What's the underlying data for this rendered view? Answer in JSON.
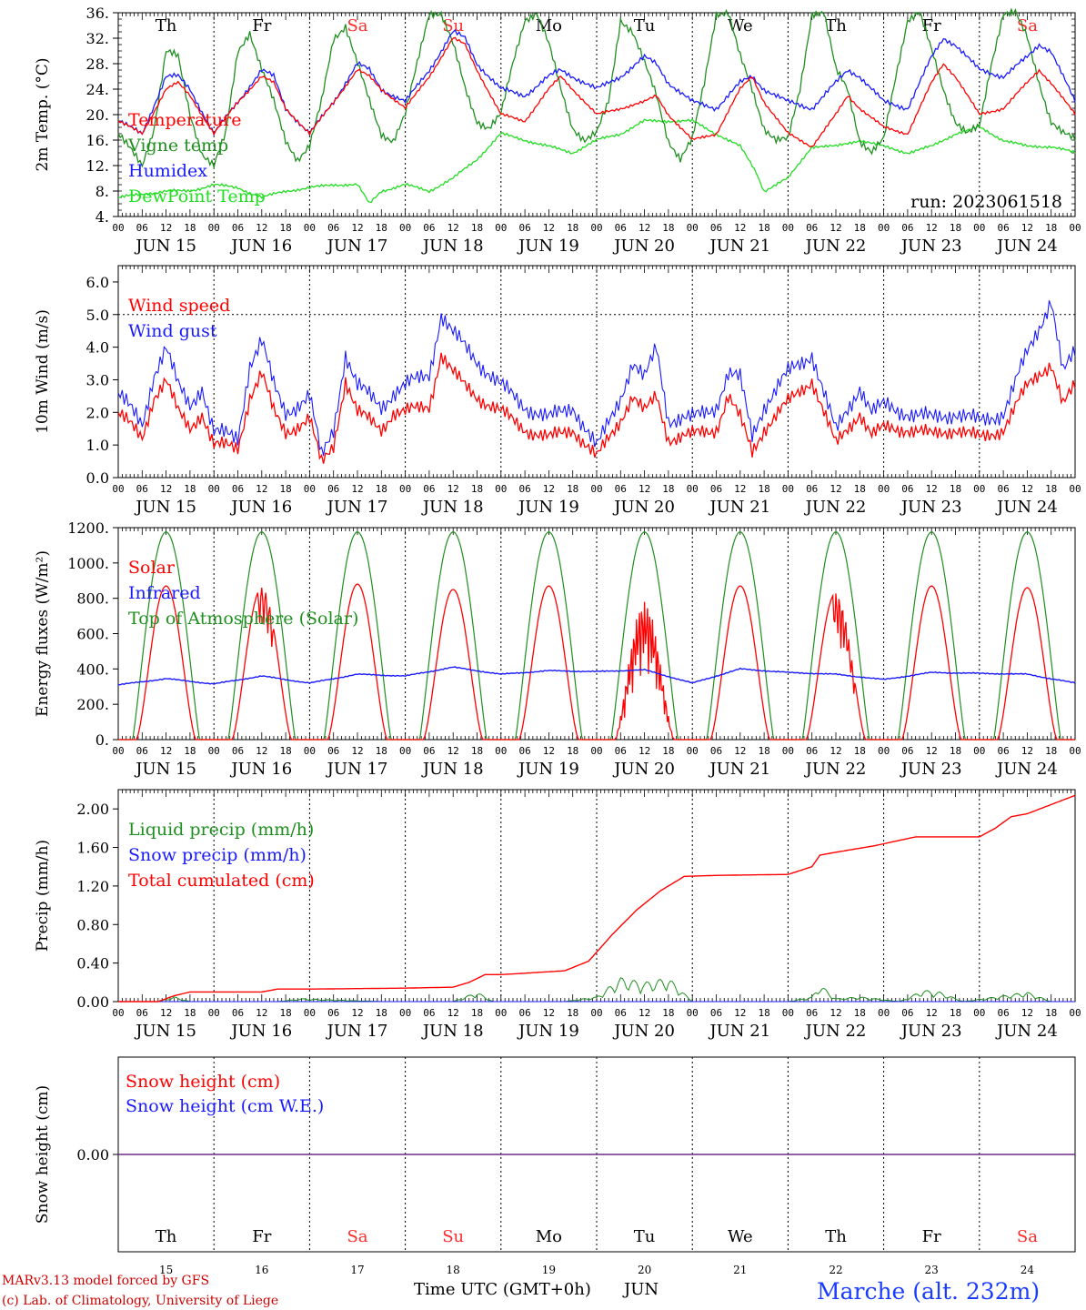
{
  "colors": {
    "red": "#ff0000",
    "green": "#1f8f1f",
    "blue": "#1a1aff",
    "lightgreen": "#22dd22",
    "purple": "#6a2a8a",
    "weekend": "#ff2a2a",
    "weekday": "#000000"
  },
  "day_names": [
    "Th",
    "Fr",
    "Sa",
    "Su",
    "Mo",
    "Tu",
    "We",
    "Th",
    "Fr",
    "Sa"
  ],
  "weekend_flags": [
    false,
    false,
    true,
    true,
    false,
    false,
    false,
    false,
    false,
    true
  ],
  "date_labels": [
    "JUN 15",
    "JUN 16",
    "JUN 17",
    "JUN 18",
    "JUN 19",
    "JUN 20",
    "JUN 21",
    "JUN 22",
    "JUN 23",
    "JUN 24"
  ],
  "day_numbers": [
    "15",
    "16",
    "17",
    "18",
    "19",
    "20",
    "21",
    "22",
    "23",
    "24"
  ],
  "hour_ticks": [
    "00",
    "06",
    "12",
    "18"
  ],
  "hour_end": "00",
  "footer": {
    "model_line1": "MARv3.13 model forced by GFS",
    "model_line2": "(c) Lab. of Climatology, University of Liege",
    "axis_title": "Time UTC (GMT+0h)",
    "month": "JUN",
    "station": "Marche (alt. 232m)"
  },
  "chart_data": [
    {
      "type": "line",
      "id": "temperature",
      "ylabel": "2m Temp. (°C)",
      "ylim": [
        4,
        36
      ],
      "yticks": [
        "4.",
        "8.",
        "12.",
        "16.",
        "20.",
        "24.",
        "28.",
        "32.",
        "36."
      ],
      "yticks_values": [
        4,
        8,
        12,
        16,
        20,
        24,
        28,
        32,
        36
      ],
      "annotation": "run: 2023061518",
      "x_unit": "hours since JUN 15 00 UTC",
      "series": [
        {
          "name": "Temperature",
          "color": "red",
          "x": [
            0,
            6,
            12,
            15,
            18,
            24,
            30,
            36,
            39,
            42,
            48,
            54,
            60,
            63,
            66,
            72,
            78,
            84,
            87,
            90,
            96,
            102,
            108,
            111,
            114,
            120,
            126,
            132,
            135,
            138,
            144,
            150,
            156,
            159,
            162,
            168,
            174,
            180,
            183,
            186,
            192,
            198,
            204,
            207,
            210,
            216,
            222,
            228,
            231,
            234,
            240
          ],
          "y": [
            19,
            17,
            24,
            25,
            23,
            17,
            22,
            26,
            25,
            21,
            17,
            22,
            27,
            26,
            24,
            21,
            26,
            32,
            31,
            27,
            20,
            19,
            24,
            26,
            24,
            20,
            21,
            22,
            23,
            20,
            16,
            17,
            24,
            26,
            22,
            17,
            15,
            20,
            23,
            21,
            18,
            17,
            25,
            28,
            26,
            20,
            21,
            25,
            27,
            25,
            20
          ]
        },
        {
          "name": "Vigne temp",
          "color": "green",
          "x": [
            0,
            6,
            9,
            12,
            15,
            18,
            21,
            24,
            27,
            30,
            33,
            36,
            39,
            42,
            45,
            48,
            51,
            54,
            57,
            60,
            63,
            66,
            69,
            72,
            75,
            78,
            81,
            84,
            87,
            90,
            93,
            96,
            99,
            102,
            105,
            108,
            111,
            114,
            117,
            120,
            123,
            126,
            129,
            132,
            135,
            138,
            141,
            144,
            147,
            150,
            153,
            156,
            159,
            162,
            165,
            168,
            171,
            174,
            177,
            180,
            183,
            186,
            189,
            192,
            195,
            198,
            201,
            204,
            207,
            210,
            213,
            216,
            219,
            222,
            225,
            228,
            231,
            234,
            237,
            240
          ],
          "y": [
            17,
            12,
            18,
            30,
            29,
            20,
            14,
            12,
            17,
            30,
            33,
            27,
            22,
            16,
            13,
            15,
            22,
            32,
            34,
            28,
            22,
            17,
            16,
            20,
            28,
            36,
            36,
            31,
            24,
            19,
            18,
            20,
            28,
            35,
            36,
            31,
            24,
            18,
            16,
            17,
            22,
            35,
            33,
            28,
            23,
            16,
            13,
            16,
            25,
            36,
            36,
            29,
            24,
            18,
            16,
            16,
            24,
            36,
            36,
            27,
            24,
            16,
            14,
            16,
            26,
            35,
            36,
            30,
            24,
            19,
            17,
            18,
            28,
            36,
            36,
            32,
            25,
            19,
            17,
            16
          ]
        },
        {
          "name": "Humidex",
          "color": "blue",
          "x": [
            0,
            6,
            12,
            15,
            18,
            24,
            30,
            36,
            39,
            42,
            48,
            54,
            60,
            63,
            66,
            72,
            78,
            84,
            87,
            90,
            96,
            102,
            108,
            111,
            114,
            120,
            126,
            132,
            135,
            138,
            144,
            150,
            156,
            159,
            162,
            168,
            174,
            180,
            183,
            186,
            192,
            198,
            204,
            207,
            210,
            216,
            222,
            228,
            231,
            234,
            240
          ],
          "y": [
            19,
            17,
            26,
            26,
            24,
            17,
            22,
            27,
            26,
            21,
            17,
            22,
            28,
            27,
            24,
            22,
            27,
            33,
            32,
            28,
            24,
            23,
            26,
            27,
            26,
            24,
            26,
            29,
            28,
            25,
            22,
            21,
            25,
            26,
            24,
            22,
            21,
            25,
            27,
            26,
            22,
            21,
            29,
            32,
            31,
            27,
            26,
            29,
            31,
            30,
            22
          ]
        },
        {
          "name": "DewPoint Temp",
          "color": "lightgreen",
          "x": [
            0,
            6,
            12,
            18,
            24,
            30,
            36,
            42,
            48,
            54,
            60,
            63,
            66,
            72,
            78,
            84,
            90,
            96,
            102,
            108,
            114,
            120,
            126,
            132,
            138,
            144,
            150,
            156,
            160,
            162,
            168,
            174,
            180,
            186,
            192,
            198,
            204,
            210,
            216,
            222,
            228,
            234,
            240
          ],
          "y": [
            7,
            7.5,
            8,
            8,
            9,
            8.5,
            7,
            8,
            8.5,
            9,
            9,
            6,
            8,
            9,
            8,
            10,
            13,
            17,
            16,
            15,
            14,
            16,
            17,
            19,
            19,
            19,
            17,
            15,
            11,
            8,
            10,
            15,
            15,
            16,
            15,
            14,
            15,
            17,
            18,
            16,
            15,
            15,
            14
          ]
        }
      ]
    },
    {
      "type": "line",
      "id": "wind",
      "ylabel": "10m Wind (m/s)",
      "ylim": [
        0,
        6.5
      ],
      "yticks": [
        "0.0",
        "1.0",
        "2.0",
        "3.0",
        "4.0",
        "5.0",
        "6.0"
      ],
      "yticks_values": [
        0,
        1,
        2,
        3,
        4,
        5,
        6
      ],
      "reference_line": 5.0,
      "x_unit": "hours since JUN 15 00 UTC",
      "series": [
        {
          "name": "Wind speed",
          "color": "red",
          "x": [
            0,
            6,
            9,
            12,
            15,
            18,
            21,
            24,
            30,
            33,
            36,
            39,
            42,
            48,
            51,
            54,
            57,
            60,
            66,
            69,
            72,
            78,
            81,
            84,
            87,
            90,
            96,
            102,
            108,
            114,
            120,
            126,
            129,
            132,
            135,
            138,
            144,
            150,
            153,
            156,
            159,
            162,
            168,
            174,
            180,
            186,
            189,
            192,
            198,
            204,
            210,
            216,
            222,
            228,
            231,
            234,
            237,
            240
          ],
          "y": [
            2.0,
            1.2,
            2.5,
            3.0,
            2.0,
            1.5,
            2.0,
            1.0,
            0.9,
            2.5,
            3.2,
            2.0,
            1.4,
            1.8,
            0.4,
            1.0,
            3.0,
            2.0,
            1.5,
            2.0,
            2.0,
            2.2,
            3.8,
            3.2,
            2.8,
            2.5,
            2.0,
            1.5,
            1.2,
            1.5,
            0.6,
            1.8,
            2.5,
            2.0,
            2.5,
            1.2,
            1.3,
            1.5,
            2.5,
            1.8,
            0.8,
            1.5,
            2.3,
            3.0,
            1.0,
            2.0,
            1.3,
            1.5,
            1.5,
            1.3,
            1.5,
            1.2,
            1.5,
            2.8,
            3.2,
            3.5,
            2.2,
            2.8
          ]
        },
        {
          "name": "Wind gust",
          "color": "blue",
          "x": [
            0,
            6,
            9,
            12,
            15,
            18,
            21,
            24,
            30,
            33,
            36,
            39,
            42,
            48,
            51,
            54,
            57,
            60,
            66,
            69,
            72,
            78,
            81,
            84,
            87,
            90,
            96,
            102,
            108,
            114,
            120,
            126,
            129,
            132,
            135,
            138,
            144,
            150,
            153,
            156,
            159,
            162,
            168,
            174,
            180,
            186,
            189,
            192,
            198,
            204,
            210,
            216,
            222,
            228,
            231,
            234,
            237,
            240
          ],
          "y": [
            2.6,
            1.6,
            3.2,
            4.0,
            2.8,
            2.2,
            2.8,
            1.4,
            1.2,
            3.5,
            4.2,
            2.8,
            2.0,
            2.5,
            0.6,
            1.5,
            3.8,
            2.8,
            2.2,
            2.6,
            2.8,
            3.2,
            5.0,
            4.4,
            4.0,
            3.6,
            2.8,
            2.2,
            1.8,
            2.2,
            0.9,
            2.5,
            3.5,
            3.0,
            4.0,
            1.8,
            1.8,
            2.2,
            3.2,
            3.0,
            1.3,
            2.2,
            3.2,
            3.8,
            1.4,
            2.8,
            2.0,
            2.2,
            2.0,
            1.8,
            2.0,
            1.7,
            2.0,
            3.8,
            4.6,
            5.5,
            3.2,
            3.8
          ]
        }
      ]
    },
    {
      "type": "line",
      "id": "energy",
      "ylabel": "Energy fluxes (W/m²)",
      "ylim": [
        0,
        1200
      ],
      "yticks": [
        "0.",
        "200.",
        "400.",
        "600.",
        "800.",
        "1000.",
        "1200."
      ],
      "yticks_values": [
        0,
        200,
        400,
        600,
        800,
        1000,
        1200
      ],
      "x_unit": "hours since JUN 15 00 UTC",
      "series": [
        {
          "name": "Solar",
          "color": "red",
          "daily_peaks": [
            870,
            860,
            880,
            850,
            870,
            780,
            870,
            830,
            870,
            860
          ]
        },
        {
          "name": "Infrared",
          "color": "blue",
          "x": [
            0,
            12,
            24,
            36,
            48,
            60,
            72,
            84,
            96,
            108,
            120,
            132,
            144,
            156,
            168,
            180,
            192,
            204,
            216,
            228,
            240
          ],
          "y": [
            310,
            345,
            315,
            360,
            320,
            370,
            360,
            410,
            370,
            390,
            385,
            395,
            320,
            400,
            380,
            370,
            340,
            380,
            375,
            370,
            320
          ]
        },
        {
          "name": "Top of Atmosphere (Solar)",
          "color": "green",
          "daily_peak": 1175
        }
      ]
    },
    {
      "type": "line",
      "id": "precip",
      "ylabel": "Precip (mm/h)",
      "ylim": [
        0,
        2.2
      ],
      "yticks": [
        "0.00",
        "0.40",
        "0.80",
        "1.20",
        "1.60",
        "2.00"
      ],
      "yticks_values": [
        0,
        0.4,
        0.8,
        1.2,
        1.6,
        2.0
      ],
      "x_unit": "hours since JUN 15 00 UTC",
      "series": [
        {
          "name": "Liquid precip (mm/h)",
          "color": "green",
          "x": [
            0,
            10,
            14,
            18,
            24,
            40,
            46,
            66,
            84,
            90,
            94,
            112,
            120,
            126,
            132,
            138,
            144,
            150,
            168,
            174,
            176,
            180,
            186,
            196,
            202,
            206,
            212,
            220,
            228,
            234,
            240
          ],
          "y": [
            0,
            0,
            0.05,
            0,
            0,
            0,
            0.03,
            0,
            0,
            0.1,
            0,
            0,
            0.05,
            0.25,
            0.2,
            0.25,
            0,
            0,
            0,
            0.05,
            0.18,
            0.03,
            0.05,
            0,
            0.12,
            0.1,
            0,
            0.05,
            0.1,
            0,
            0
          ]
        },
        {
          "name": "Snow precip (mm/h)",
          "color": "blue",
          "x": [
            0,
            240
          ],
          "y": [
            0,
            0
          ]
        },
        {
          "name": "Total cumulated (cm)",
          "color": "red",
          "x": [
            0,
            10,
            14,
            18,
            24,
            36,
            40,
            48,
            72,
            84,
            88,
            92,
            96,
            112,
            118,
            124,
            130,
            136,
            142,
            150,
            168,
            174,
            176,
            180,
            190,
            200,
            216,
            220,
            224,
            228,
            240
          ],
          "y": [
            0,
            0,
            0.06,
            0.1,
            0.1,
            0.1,
            0.13,
            0.13,
            0.14,
            0.15,
            0.2,
            0.28,
            0.28,
            0.32,
            0.42,
            0.7,
            0.95,
            1.15,
            1.3,
            1.31,
            1.32,
            1.4,
            1.52,
            1.55,
            1.62,
            1.71,
            1.71,
            1.8,
            1.92,
            1.95,
            2.14
          ]
        }
      ]
    },
    {
      "type": "line",
      "id": "snow",
      "ylabel": "Snow height (cm)",
      "ylim": [
        -1,
        1
      ],
      "yticks": [
        "0.00"
      ],
      "yticks_values": [
        0
      ],
      "x_unit": "hours since JUN 15 00 UTC",
      "series": [
        {
          "name": "Snow height (cm)",
          "color": "red",
          "x": [
            0,
            240
          ],
          "y": [
            0,
            0
          ]
        },
        {
          "name": "Snow height (cm W.E.)",
          "color": "blue",
          "x": [
            0,
            240
          ],
          "y": [
            0,
            0
          ]
        }
      ]
    }
  ]
}
